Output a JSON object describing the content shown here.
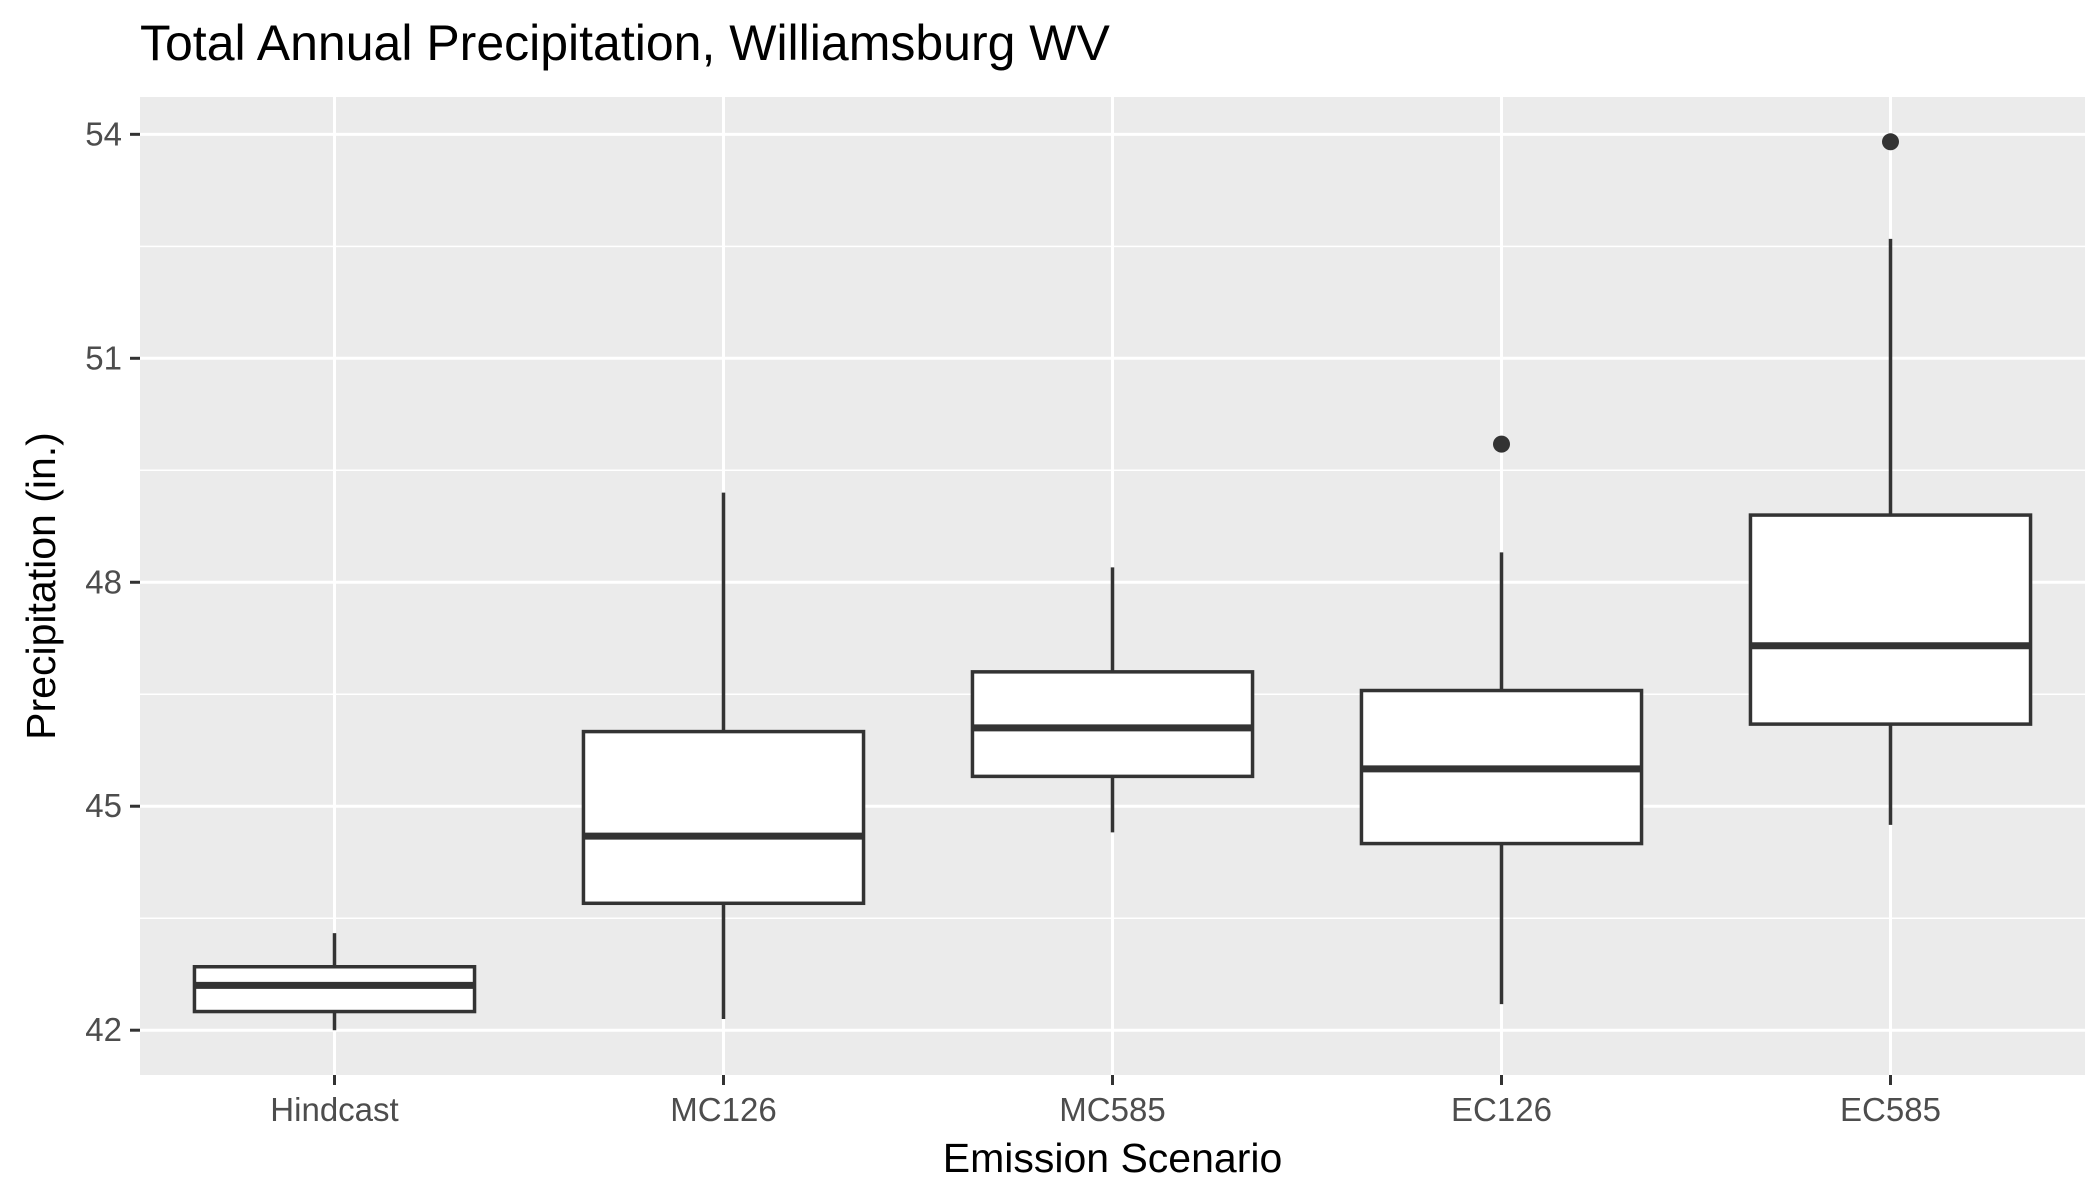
{
  "chart_data": {
    "type": "boxplot",
    "title": "Total Annual Precipitation, Williamsburg WV",
    "xlabel": "Emission Scenario",
    "ylabel": "Precipitation (in.)",
    "ylim": [
      41.4,
      54.5
    ],
    "yticks": [
      42,
      45,
      48,
      51,
      54
    ],
    "ytick_labels": [
      "42",
      "45",
      "48",
      "51",
      "54"
    ],
    "minor_gridlines": [
      43.5,
      46.5,
      49.5,
      52.5
    ],
    "grid": true,
    "legend": "none",
    "categories": [
      "Hindcast",
      "MC126",
      "MC585",
      "EC126",
      "EC585"
    ],
    "boxes": [
      {
        "category": "Hindcast",
        "whisker_low": 42.0,
        "q1": 42.25,
        "median": 42.6,
        "q3": 42.85,
        "whisker_high": 43.3,
        "outliers": []
      },
      {
        "category": "MC126",
        "whisker_low": 42.15,
        "q1": 43.7,
        "median": 44.6,
        "q3": 46.0,
        "whisker_high": 49.2,
        "outliers": []
      },
      {
        "category": "MC585",
        "whisker_low": 44.65,
        "q1": 45.4,
        "median": 46.05,
        "q3": 46.8,
        "whisker_high": 48.2,
        "outliers": []
      },
      {
        "category": "EC126",
        "whisker_low": 42.35,
        "q1": 44.5,
        "median": 45.5,
        "q3": 46.55,
        "whisker_high": 48.4,
        "outliers": [
          49.85
        ]
      },
      {
        "category": "EC585",
        "whisker_low": 44.75,
        "q1": 46.1,
        "median": 47.15,
        "q3": 48.9,
        "whisker_high": 52.6,
        "outliers": [
          53.9
        ]
      }
    ],
    "colors": {
      "panel_background": "#ebebeb",
      "gridline": "#ffffff",
      "box_fill": "#ffffff",
      "box_stroke": "#333333",
      "tick_mark": "#333333"
    }
  }
}
